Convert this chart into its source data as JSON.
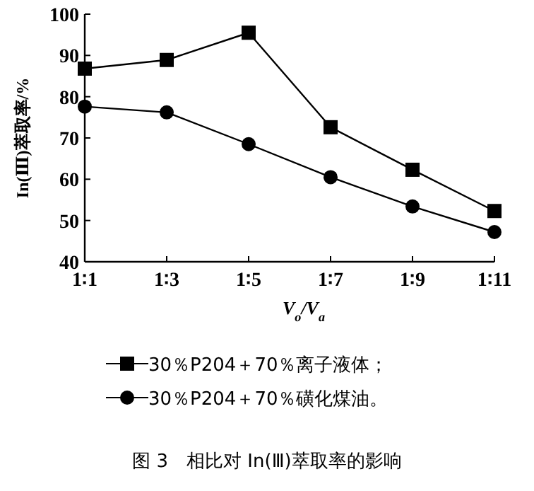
{
  "chart_data": {
    "type": "line",
    "title": "图 3　相比对 In(Ⅲ)萃取率的影响",
    "xlabel": "V$_{o}$/V$_{a}$",
    "ylabel": "In(Ⅲ)萃取率/%",
    "categories": [
      "1∶1",
      "1∶3",
      "1∶5",
      "1∶7",
      "1∶9",
      "1∶11"
    ],
    "ylim": [
      40,
      100
    ],
    "yticks": [
      40,
      50,
      60,
      70,
      80,
      90,
      100
    ],
    "grid": false,
    "legend": "bottom",
    "line_style": "solid",
    "series": [
      {
        "name": "30％P204＋70％离子液体；",
        "color": "#000000",
        "marker": "square",
        "values": [
          86.8,
          88.9,
          95.5,
          72.6,
          62.3,
          52.3
        ]
      },
      {
        "name": "30％P204＋70％磺化煤油。",
        "color": "#000000",
        "marker": "circle",
        "values": [
          77.6,
          76.2,
          68.5,
          60.5,
          53.4,
          47.2
        ]
      }
    ]
  }
}
